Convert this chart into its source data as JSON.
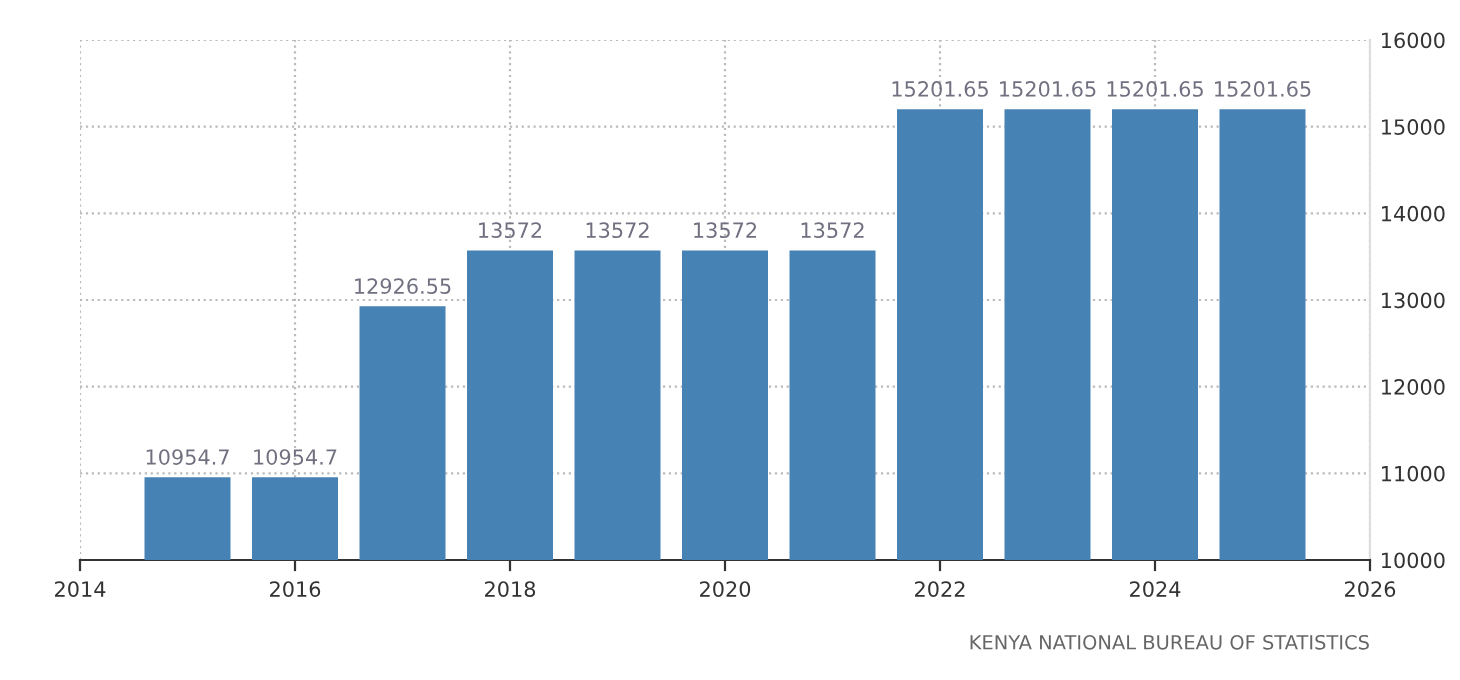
{
  "chart_data": {
    "type": "bar",
    "x": [
      2015,
      2016,
      2017,
      2018,
      2019,
      2020,
      2021,
      2022,
      2023,
      2024,
      2025
    ],
    "values": [
      10954.7,
      10954.7,
      12926.55,
      13572,
      13572,
      13572,
      13572,
      15201.65,
      15201.65,
      15201.65,
      15201.65
    ],
    "color": "#4682b4",
    "data_labels": true,
    "xlim": [
      2014,
      2026
    ],
    "xticks": [
      2014,
      2016,
      2018,
      2020,
      2022,
      2024,
      2026
    ],
    "ylim": [
      10000,
      16000
    ],
    "yticks": [
      10000,
      11000,
      12000,
      13000,
      14000,
      15000,
      16000
    ],
    "grid": true,
    "annotations": [
      "KENYA NATIONAL BUREAU OF STATISTICS"
    ]
  }
}
